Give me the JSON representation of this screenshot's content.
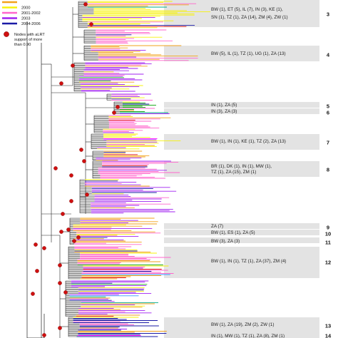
{
  "legend": {
    "years": [
      {
        "label": "",
        "color": "#f2a21b"
      },
      {
        "label": "2000",
        "color": "#f7f20a"
      },
      {
        "label": "2001-2002",
        "color": "#ff66cc"
      },
      {
        "label": "2003",
        "color": "#a020f0"
      },
      {
        "label": "2004-2006",
        "color": "#1a1aa6"
      }
    ],
    "node_text_lines": [
      "Nodes with aLRT",
      "support of more",
      "than 0.90"
    ],
    "node_color": "#d01010"
  },
  "palette": {
    "branch": "#222222",
    "band": "#e3e3e3",
    "tip_colors": [
      "#f2a21b",
      "#f7f20a",
      "#ff66cc",
      "#a020f0",
      "#1a1aa6",
      "#22aa22",
      "#e01010",
      "#3399ff",
      "#ff00ff",
      "#00aa88"
    ]
  },
  "clusters": [
    {
      "num": "3",
      "lines": [
        "BW (1), ET (5), IL (7), IN (3), KE (1),",
        "SN (1), TZ (1), ZA (14), ZM (4), ZW (1)"
      ]
    },
    {
      "num": "4",
      "lines": [
        "BW (5), IL (1), TZ (1), UG (1), ZA (13)"
      ]
    },
    {
      "num": "5",
      "lines": [
        "IN (1), ZA (5)"
      ]
    },
    {
      "num": "6",
      "lines": [
        "IN (3), ZA (3)"
      ]
    },
    {
      "num": "7",
      "lines": [
        "BW (1), IN (1), KE (1), TZ (2), ZA (13)"
      ]
    },
    {
      "num": "8",
      "lines": [
        "BR (1), DK (1), IN (1), MW (1),",
        "TZ (1), ZA (15), ZM (1)"
      ]
    },
    {
      "num": "9",
      "lines": [
        "ZA (7)"
      ]
    },
    {
      "num": "10",
      "lines": [
        "BW (1), ES (1), ZA (5)"
      ]
    },
    {
      "num": "11",
      "lines": [
        "BW (3), ZA (3)"
      ]
    },
    {
      "num": "12",
      "lines": [
        "BW (1), IN (1), TZ (1), ZA (37), ZM (4)"
      ]
    },
    {
      "num": "13",
      "lines": [
        "BW (1), ZA (19), ZM (2), ZW (1)"
      ]
    },
    {
      "num": "14",
      "lines": [
        "IN (1), MW (1), TZ (1), ZA (8), ZM (1)"
      ]
    }
  ]
}
